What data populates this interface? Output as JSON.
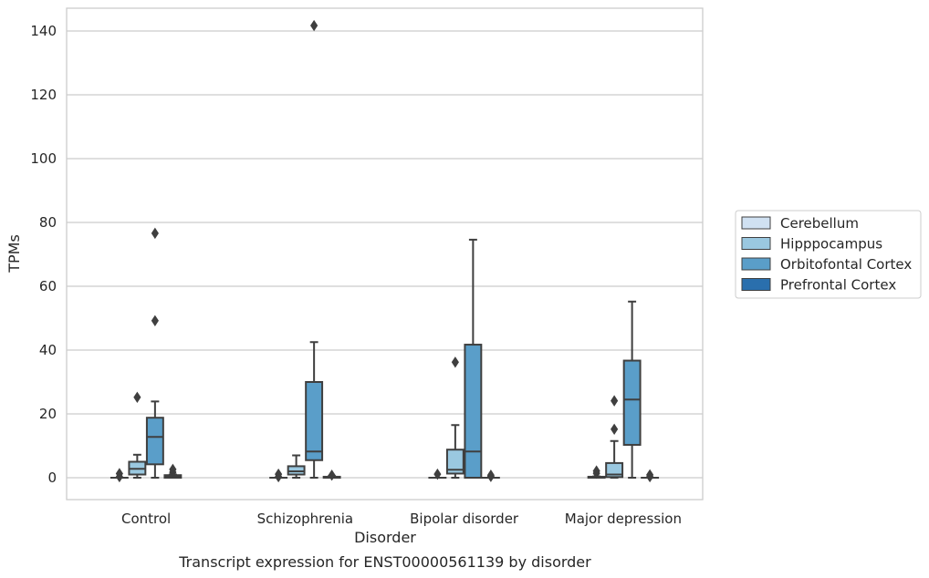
{
  "chart_data": {
    "type": "box",
    "title": "",
    "caption": "Transcript expression for ENST00000561139 by disorder",
    "xlabel": "Disorder",
    "ylabel": "TPMs",
    "ylim": [
      -7,
      149
    ],
    "yticks": [
      0,
      20,
      40,
      60,
      80,
      100,
      120,
      140
    ],
    "grid": true,
    "legend_position": "right",
    "categories": [
      "Control",
      "Schizophrenia",
      "Bipolar disorder",
      "Major depression"
    ],
    "series": [
      {
        "name": "Cerebellum",
        "color": "#d0e1f2",
        "boxes": [
          {
            "whislo": 0,
            "q1": 0,
            "med": 0,
            "q3": 0,
            "whishi": 0,
            "fliers": [
              0.3,
              1.3
            ]
          },
          {
            "whislo": 0,
            "q1": 0,
            "med": 0,
            "q3": 0,
            "whishi": 0,
            "fliers": [
              0.3,
              1.1
            ]
          },
          {
            "whislo": 0,
            "q1": 0,
            "med": 0,
            "q3": 0,
            "whishi": 0,
            "fliers": [
              1.1
            ]
          },
          {
            "whislo": 0,
            "q1": 0,
            "med": 0,
            "q3": 0.3,
            "whishi": 0.4,
            "fliers": [
              1.4,
              2.1
            ]
          }
        ]
      },
      {
        "name": "Hipppocampus",
        "color": "#9ac8e0",
        "boxes": [
          {
            "whislo": 0,
            "q1": 1.0,
            "med": 2.8,
            "q3": 5.0,
            "whishi": 7.2,
            "fliers": [
              25.2
            ]
          },
          {
            "whislo": 0,
            "q1": 1.0,
            "med": 2.0,
            "q3": 3.6,
            "whishi": 7.0,
            "fliers": []
          },
          {
            "whislo": 0,
            "q1": 1.3,
            "med": 2.5,
            "q3": 8.8,
            "whishi": 16.5,
            "fliers": [
              36.2
            ]
          },
          {
            "whislo": 0,
            "q1": 0.2,
            "med": 1.0,
            "q3": 4.6,
            "whishi": 11.5,
            "fliers": [
              15.2,
              24.1
            ]
          }
        ]
      },
      {
        "name": "Orbitofontal Cortex",
        "color": "#5a9ec9",
        "boxes": [
          {
            "whislo": 0,
            "q1": 4.2,
            "med": 12.8,
            "q3": 18.8,
            "whishi": 23.9,
            "fliers": [
              49.2,
              76.6
            ]
          },
          {
            "whislo": 0,
            "q1": 5.5,
            "med": 8.2,
            "q3": 30.0,
            "whishi": 42.5,
            "fliers": [
              141.7
            ]
          },
          {
            "whislo": 0,
            "q1": 0,
            "med": 8.2,
            "q3": 41.7,
            "whishi": 74.6,
            "fliers": []
          },
          {
            "whislo": 0,
            "q1": 10.3,
            "med": 24.5,
            "q3": 36.7,
            "whishi": 55.2,
            "fliers": []
          }
        ]
      },
      {
        "name": "Prefrontal Cortex",
        "color": "#2a6fad",
        "boxes": [
          {
            "whislo": 0,
            "q1": 0,
            "med": 0.3,
            "q3": 0.8,
            "whishi": 1.0,
            "fliers": [
              1.7,
              2.6
            ]
          },
          {
            "whislo": 0,
            "q1": 0,
            "med": 0,
            "q3": 0.3,
            "whishi": 0.5,
            "fliers": [
              0.8
            ]
          },
          {
            "whislo": 0,
            "q1": 0,
            "med": 0,
            "q3": 0,
            "whishi": 0,
            "fliers": [
              0.4,
              0.8
            ]
          },
          {
            "whislo": 0,
            "q1": 0,
            "med": 0,
            "q3": 0,
            "whishi": 0,
            "fliers": [
              0.3,
              0.9
            ]
          }
        ]
      }
    ]
  }
}
